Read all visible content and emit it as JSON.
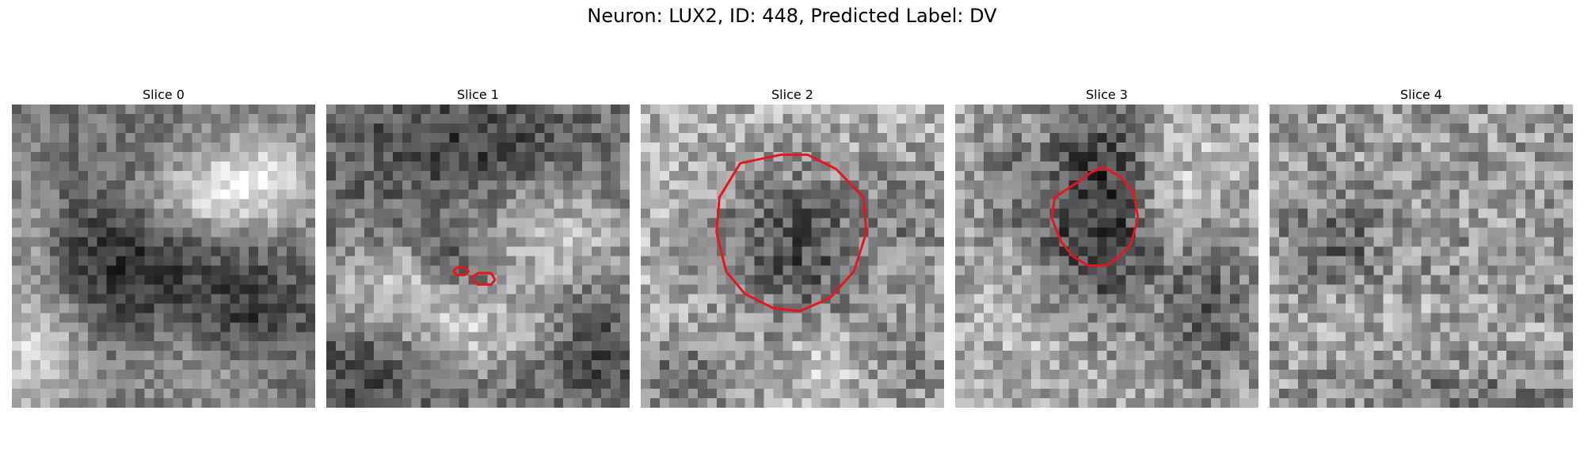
{
  "suptitle": "Neuron: LUX2, ID: 448, Predicted Label: DV",
  "slices": [
    {
      "title": "Slice 0",
      "has_contour": false
    },
    {
      "title": "Slice 1",
      "has_contour": true
    },
    {
      "title": "Slice 2",
      "has_contour": true
    },
    {
      "title": "Slice 3",
      "has_contour": true
    },
    {
      "title": "Slice 4",
      "has_contour": false
    }
  ],
  "colors": {
    "contour": "#e8141e",
    "background": "#ffffff",
    "colormap": "gray"
  }
}
